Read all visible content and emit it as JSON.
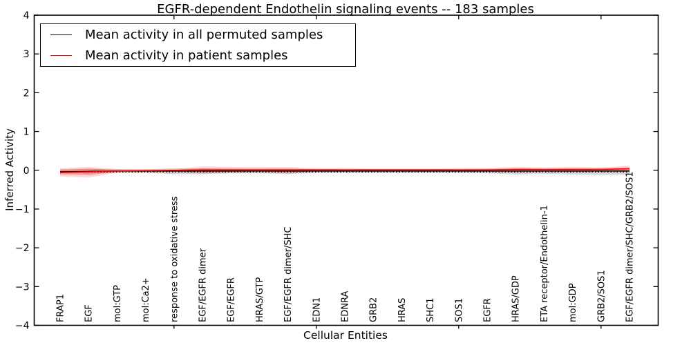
{
  "figure": {
    "title": "EGFR-dependent Endothelin signaling events -- 183 samples",
    "xlabel": "Cellular Entities",
    "ylabel": "Inferred Activity"
  },
  "legend": {
    "items": [
      {
        "label": "Mean activity in all permuted samples",
        "color": "#000000"
      },
      {
        "label": "Mean activity in patient samples",
        "color": "#ff0000"
      }
    ]
  },
  "chart_data": {
    "type": "line",
    "title": "EGFR-dependent Endothelin signaling events -- 183 samples",
    "xlabel": "Cellular Entities",
    "ylabel": "Inferred Activity",
    "ylim": [
      -4,
      4
    ],
    "grid": false,
    "legend_position": "upper left",
    "ytick_values": [
      -4,
      -3,
      -2,
      -1,
      0,
      1,
      2,
      3,
      4
    ],
    "ytick_labels": [
      "−4",
      "−3",
      "−2",
      "−1",
      "0",
      "1",
      "2",
      "3",
      "4"
    ],
    "x_major_tick_indices": [
      4,
      9,
      14,
      19
    ],
    "categories": [
      "FRAP1",
      "EGF",
      "mol:GTP",
      "mol:Ca2+",
      "response to oxidative stress",
      "EGF/EGFR dimer",
      "EGF/EGFR",
      "HRAS/GTP",
      "EGF/EGFR dimer/SHC",
      "EDN1",
      "EDNRA",
      "GRB2",
      "HRAS",
      "SHC1",
      "SOS1",
      "EGFR",
      "HRAS/GDP",
      "ETA receptor/Endothelin-1",
      "mol:GDP",
      "GRB2/SOS1",
      "EGF/EGFR dimer/SHC/GRB2/SOS1"
    ],
    "series": [
      {
        "name": "Mean activity in all permuted samples",
        "color": "#000000",
        "style": "solid",
        "values": [
          -0.04,
          -0.03,
          -0.02,
          -0.02,
          -0.02,
          -0.02,
          -0.02,
          -0.02,
          -0.02,
          -0.02,
          -0.02,
          -0.02,
          -0.02,
          -0.02,
          -0.02,
          -0.02,
          -0.02,
          -0.02,
          -0.02,
          -0.02,
          -0.02
        ]
      },
      {
        "name": "Mean activity in patient samples",
        "color": "#ff0000",
        "style": "solid",
        "values": [
          -0.06,
          -0.04,
          -0.02,
          -0.01,
          0.0,
          0.01,
          0.01,
          0.01,
          0.01,
          0.01,
          0.01,
          0.01,
          0.01,
          0.01,
          0.01,
          0.01,
          0.02,
          0.02,
          0.02,
          0.02,
          0.04
        ]
      },
      {
        "name": "dotted reference",
        "color": "#000000",
        "style": "dotted",
        "values": [
          -0.045,
          -0.045,
          -0.045,
          -0.045,
          -0.045,
          -0.045,
          -0.045,
          -0.045,
          -0.045,
          -0.045,
          -0.045,
          -0.045,
          -0.045,
          -0.045,
          -0.045,
          -0.045,
          -0.045,
          -0.045,
          -0.045,
          -0.045,
          -0.045
        ]
      }
    ],
    "bands": [
      {
        "name": "permuted samples range",
        "color": "#808080",
        "alpha": 0.3,
        "upper": [
          0.03,
          0.04,
          0.03,
          0.03,
          0.05,
          0.05,
          0.04,
          0.04,
          0.04,
          0.03,
          0.03,
          0.03,
          0.03,
          0.03,
          0.03,
          0.04,
          0.05,
          0.04,
          0.05,
          0.06,
          0.05
        ],
        "lower": [
          -0.08,
          -0.09,
          -0.07,
          -0.07,
          -0.1,
          -0.1,
          -0.08,
          -0.08,
          -0.1,
          -0.07,
          -0.07,
          -0.07,
          -0.07,
          -0.07,
          -0.07,
          -0.08,
          -0.11,
          -0.09,
          -0.11,
          -0.12,
          -0.11
        ]
      },
      {
        "name": "patient samples range (outer)",
        "color": "#ff0000",
        "alpha": 0.15,
        "upper": [
          0.05,
          0.09,
          0.03,
          0.02,
          0.03,
          0.1,
          0.09,
          0.08,
          0.08,
          0.06,
          0.05,
          0.04,
          0.04,
          0.04,
          0.05,
          0.05,
          0.09,
          0.07,
          0.09,
          0.07,
          0.12
        ],
        "lower": [
          -0.16,
          -0.19,
          -0.06,
          -0.05,
          -0.05,
          -0.09,
          -0.07,
          -0.06,
          -0.09,
          -0.05,
          -0.05,
          -0.05,
          -0.05,
          -0.05,
          -0.05,
          -0.05,
          -0.07,
          -0.05,
          -0.06,
          -0.05,
          -0.05
        ]
      },
      {
        "name": "patient samples range (inner)",
        "color": "#ff0000",
        "alpha": 0.25,
        "upper": [
          0.01,
          0.04,
          0.01,
          0.01,
          0.01,
          0.05,
          0.04,
          0.04,
          0.04,
          0.03,
          0.03,
          0.03,
          0.03,
          0.03,
          0.03,
          0.03,
          0.05,
          0.04,
          0.05,
          0.04,
          0.08
        ],
        "lower": [
          -0.11,
          -0.13,
          -0.04,
          -0.03,
          -0.03,
          -0.05,
          -0.04,
          -0.03,
          -0.05,
          -0.03,
          -0.03,
          -0.03,
          -0.03,
          -0.03,
          -0.03,
          -0.03,
          -0.04,
          -0.03,
          -0.04,
          -0.03,
          -0.02
        ]
      }
    ]
  }
}
